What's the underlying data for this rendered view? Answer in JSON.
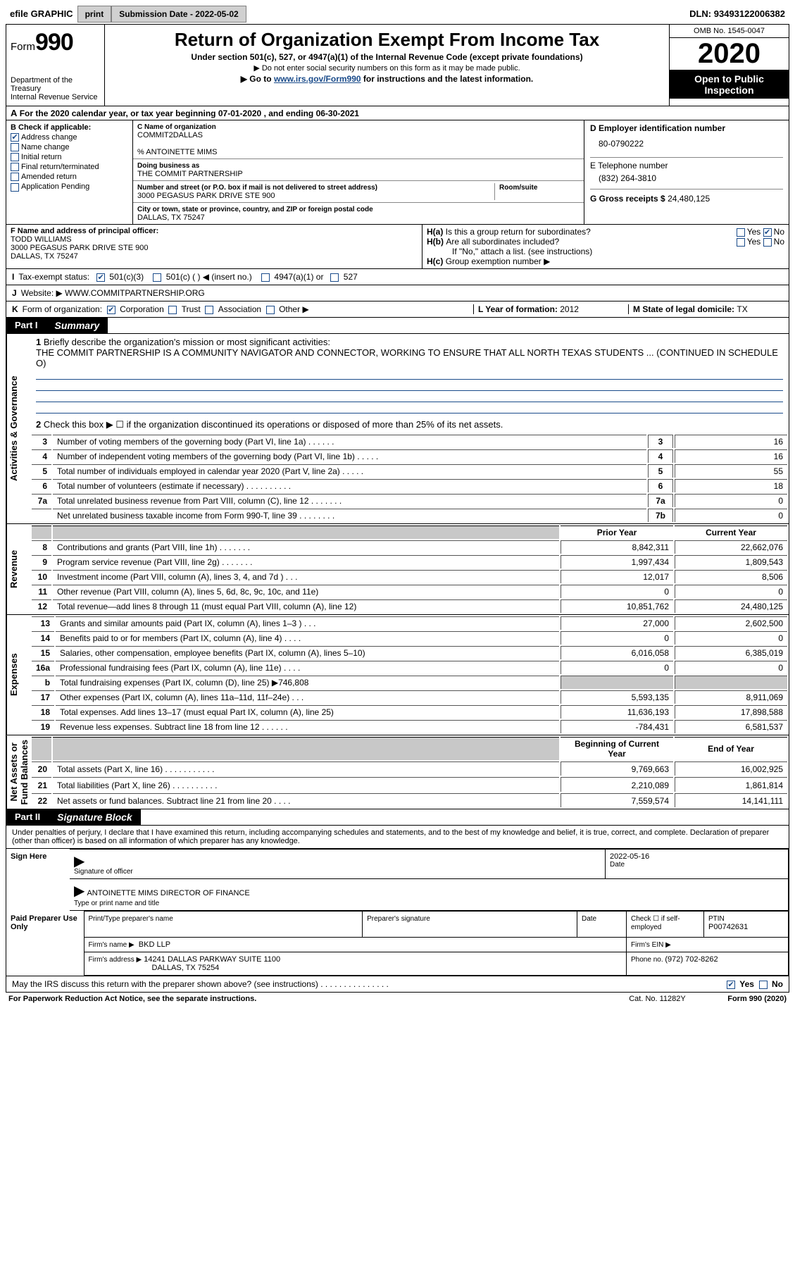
{
  "topbar": {
    "efile_label": "efile GRAPHIC",
    "print_btn": "print",
    "subdate_label": "Submission Date - ",
    "subdate": "2022-05-02",
    "dln_label": "DLN: ",
    "dln": "93493122006382"
  },
  "header": {
    "form_label": "Form",
    "form_num": "990",
    "dept1": "Department of the Treasury",
    "dept2": "Internal Revenue Service",
    "title": "Return of Organization Exempt From Income Tax",
    "subtitle1": "Under section 501(c), 527, or 4947(a)(1) of the Internal Revenue Code (except private foundations)",
    "subtitle2": "▶ Do not enter social security numbers on this form as it may be made public.",
    "subtitle3a": "▶ Go to ",
    "subtitle3_link": "www.irs.gov/Form990",
    "subtitle3b": " for instructions and the latest information.",
    "omb": "OMB No. 1545-0047",
    "year": "2020",
    "open_pub1": "Open to Public",
    "open_pub2": "Inspection"
  },
  "lineA": {
    "label_a": "A",
    "text": " For the 2020 calendar year, or tax year beginning ",
    "begin": "07-01-2020",
    "sep": " , and ending ",
    "end": "06-30-2021"
  },
  "boxB": {
    "label": "B Check if applicable:",
    "items": [
      {
        "label": "Address change",
        "checked": true
      },
      {
        "label": "Name change",
        "checked": false
      },
      {
        "label": "Initial return",
        "checked": false
      },
      {
        "label": "Final return/terminated",
        "checked": false
      },
      {
        "label": "Amended return",
        "checked": false
      },
      {
        "label": "Application Pending",
        "checked": false
      }
    ]
  },
  "boxC": {
    "name_lab": "C Name of organization",
    "name": "COMMIT2DALLAS",
    "care_lab": "",
    "care": "% ANTOINETTE MIMS",
    "dba_lab": "Doing business as",
    "dba": "THE COMMIT PARTNERSHIP",
    "addr_lab": "Number and street (or P.O. box if mail is not delivered to street address)",
    "addr": "3000 PEGASUS PARK DRIVE STE 900",
    "room_lab": "Room/suite",
    "city_lab": "City or town, state or province, country, and ZIP or foreign postal code",
    "city": "DALLAS, TX  75247"
  },
  "boxD": {
    "ein_lab": "D Employer identification number",
    "ein": "80-0790222",
    "tel_lab": "E Telephone number",
    "tel": "(832) 264-3810",
    "gross_lab": "G Gross receipts $ ",
    "gross": "24,480,125"
  },
  "boxF": {
    "lab": "F Name and address of principal officer:",
    "l1": "TODD WILLIAMS",
    "l2": "3000 PEGASUS PARK DRIVE STE 900",
    "l3": "DALLAS, TX  75247"
  },
  "boxHa": {
    "lab": "H(a)",
    "text": "Is this a group return for subordinates?",
    "yes": "Yes",
    "no": "No",
    "no_checked": true
  },
  "boxHb": {
    "lab": "H(b)",
    "text": "Are all subordinates included?",
    "yes": "Yes",
    "no": "No",
    "if_no": "If \"No,\" attach a list. (see instructions)"
  },
  "boxHc": {
    "lab": "H(c)",
    "text": "Group exemption number ▶"
  },
  "rowI": {
    "lab": "I",
    "text": "Tax-exempt status:",
    "opts": [
      "501(c)(3)",
      "501(c) (  ) ◀ (insert no.)",
      "4947(a)(1) or",
      "527"
    ],
    "checked": 0
  },
  "rowJ": {
    "lab": "J",
    "text": "Website: ▶",
    "val": "WWW.COMMITPARTNERSHIP.ORG"
  },
  "rowK": {
    "lab": "K",
    "text": "Form of organization:",
    "opts": [
      "Corporation",
      "Trust",
      "Association",
      "Other ▶"
    ],
    "checked": 0,
    "year_lab": "L Year of formation: ",
    "year": "2012",
    "state_lab": "M State of legal domicile: ",
    "state": "TX"
  },
  "partI": {
    "tag": "Part I",
    "title": "Summary",
    "governance_label": "Activities & Governance",
    "q1_num": "1",
    "q1_text": "Briefly describe the organization's mission or most significant activities:",
    "q1_body": "THE COMMIT PARTNERSHIP IS A COMMUNITY NAVIGATOR AND CONNECTOR, WORKING TO ENSURE THAT ALL NORTH TEXAS STUDENTS ... (CONTINUED IN SCHEDULE O)",
    "q2_num": "2",
    "q2_text": "Check this box ▶ ☐ if the organization discontinued its operations or disposed of more than 25% of its net assets.",
    "rows_gov": [
      {
        "n": "3",
        "text": "Number of voting members of the governing body (Part VI, line 1a)  .     .     .     .     .     .",
        "ref": "3",
        "val": "16"
      },
      {
        "n": "4",
        "text": "Number of independent voting members of the governing body (Part VI, line 1b)   .    .    .    .    .",
        "ref": "4",
        "val": "16"
      },
      {
        "n": "5",
        "text": "Total number of individuals employed in calendar year 2020 (Part V, line 2a)    .    .    .    .    .",
        "ref": "5",
        "val": "55"
      },
      {
        "n": "6",
        "text": "Total number of volunteers (estimate if necessary)    .    .    .    .    .    .    .    .    .    .",
        "ref": "6",
        "val": "18"
      },
      {
        "n": "7a",
        "text": "Total unrelated business revenue from Part VIII, column (C), line 12    .    .    .    .    .    .    .",
        "ref": "7a",
        "val": "0"
      },
      {
        "n": "",
        "text": "Net unrelated business taxable income from Form 990-T, line 39   .    .    .    .    .    .    .    .",
        "ref": "7b",
        "val": "0"
      }
    ],
    "revenue_label": "Revenue",
    "col_prior": "Prior Year",
    "col_current": "Current Year",
    "rows_rev": [
      {
        "n": "8",
        "text": "Contributions and grants (Part VIII, line 1h)    .    .    .    .    .    .    .",
        "p": "8,842,311",
        "c": "22,662,076"
      },
      {
        "n": "9",
        "text": "Program service revenue (Part VIII, line 2g)    .    .    .    .    .    .    .",
        "p": "1,997,434",
        "c": "1,809,543"
      },
      {
        "n": "10",
        "text": "Investment income (Part VIII, column (A), lines 3, 4, and 7d )   .    .    .",
        "p": "12,017",
        "c": "8,506"
      },
      {
        "n": "11",
        "text": "Other revenue (Part VIII, column (A), lines 5, 6d, 8c, 9c, 10c, and 11e)",
        "p": "0",
        "c": "0"
      },
      {
        "n": "12",
        "text": "Total revenue—add lines 8 through 11 (must equal Part VIII, column (A), line 12)",
        "p": "10,851,762",
        "c": "24,480,125"
      }
    ],
    "expenses_label": "Expenses",
    "rows_exp": [
      {
        "n": "13",
        "text": "Grants and similar amounts paid (Part IX, column (A), lines 1–3 )   .    .    .",
        "p": "27,000",
        "c": "2,602,500"
      },
      {
        "n": "14",
        "text": "Benefits paid to or for members (Part IX, column (A), line 4)   .    .    .    .",
        "p": "0",
        "c": "0"
      },
      {
        "n": "15",
        "text": "Salaries, other compensation, employee benefits (Part IX, column (A), lines 5–10)",
        "p": "6,016,058",
        "c": "6,385,019"
      },
      {
        "n": "16a",
        "text": "Professional fundraising fees (Part IX, column (A), line 11e)   .    .    .    .",
        "p": "0",
        "c": "0"
      },
      {
        "n": "b",
        "text": "Total fundraising expenses (Part IX, column (D), line 25) ▶746,808",
        "p": "",
        "c": "",
        "shade": true
      },
      {
        "n": "17",
        "text": "Other expenses (Part IX, column (A), lines 11a–11d, 11f–24e)   .    .    .",
        "p": "5,593,135",
        "c": "8,911,069"
      },
      {
        "n": "18",
        "text": "Total expenses. Add lines 13–17 (must equal Part IX, column (A), line 25)",
        "p": "11,636,193",
        "c": "17,898,588"
      },
      {
        "n": "19",
        "text": "Revenue less expenses. Subtract line 18 from line 12   .    .    .    .    .    .",
        "p": "-784,431",
        "c": "6,581,537"
      }
    ],
    "net_label": "Net Assets or\nFund Balances",
    "col_begin": "Beginning of Current Year",
    "col_end": "End of Year",
    "rows_net": [
      {
        "n": "20",
        "text": "Total assets (Part X, line 16)   .    .    .    .    .    .    .    .    .    .    .",
        "p": "9,769,663",
        "c": "16,002,925"
      },
      {
        "n": "21",
        "text": "Total liabilities (Part X, line 26)   .    .    .    .    .    .    .    .    .    .",
        "p": "2,210,089",
        "c": "1,861,814"
      },
      {
        "n": "22",
        "text": "Net assets or fund balances. Subtract line 21 from line 20   .    .    .    .",
        "p": "7,559,574",
        "c": "14,141,111"
      }
    ]
  },
  "partII": {
    "tag": "Part II",
    "title": "Signature Block",
    "penalty": "Under penalties of perjury, I declare that I have examined this return, including accompanying schedules and statements, and to the best of my knowledge and belief, it is true, correct, and complete. Declaration of preparer (other than officer) is based on all information of which preparer has any knowledge.",
    "sign_here": "Sign Here",
    "sig_officer_lab": "Signature of officer",
    "date_val": "2022-05-16",
    "date_lab": "Date",
    "officer_name": "ANTOINETTE MIMS  DIRECTOR OF FINANCE",
    "officer_lab": "Type or print name and title",
    "paid_prep": "Paid Preparer Use Only",
    "p_name_lab": "Print/Type preparer's name",
    "p_sig_lab": "Preparer's signature",
    "p_date_lab": "Date",
    "p_check_lab": "Check ☐ if self-employed",
    "ptin_lab": "PTIN",
    "ptin": "P00742631",
    "firm_name_lab": "Firm's name    ▶",
    "firm_name": "BKD LLP",
    "firm_ein_lab": "Firm's EIN ▶",
    "firm_addr_lab": "Firm's address ▶",
    "firm_addr": "14241 DALLAS PARKWAY SUITE 1100",
    "firm_addr2": "DALLAS, TX  75254",
    "phone_lab": "Phone no. ",
    "phone": "(972) 702-8262",
    "discuss": "May the IRS discuss this return with the preparer shown above? (see instructions)    .    .    .    .    .    .    .    .    .    .    .    .    .    .    .",
    "yes": "Yes",
    "no": "No",
    "yes_checked": true
  },
  "footer": {
    "left": "For Paperwork Reduction Act Notice, see the separate instructions.",
    "mid": "Cat. No. 11282Y",
    "right": "Form 990 (2020)"
  }
}
